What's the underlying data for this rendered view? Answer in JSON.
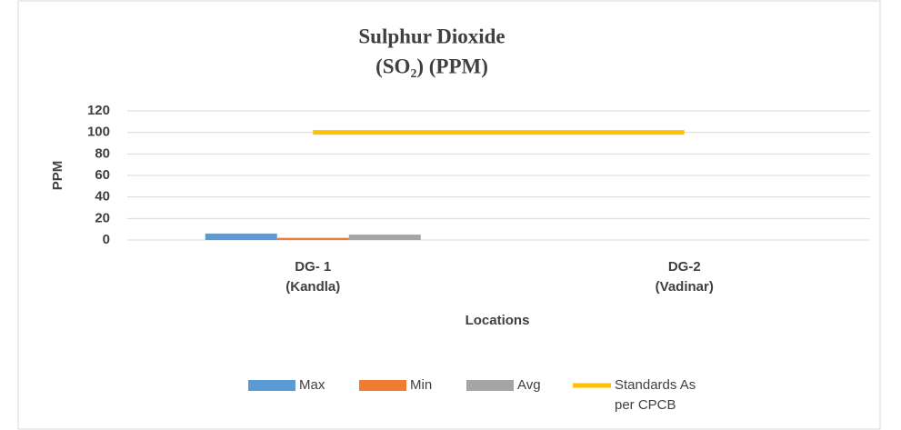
{
  "chart_data": {
    "type": "bar-line",
    "title": [
      "Sulphur Dioxide",
      "(SO₂) (PPM)"
    ],
    "x_label": "Locations",
    "y_label": "PPM",
    "categories": [
      "DG- 1\n(Kandla)",
      "DG-2\n(Vadinar)"
    ],
    "series": [
      {
        "name": "Max",
        "color": "#5b9bd5",
        "type": "bar",
        "values": [
          6,
          null
        ]
      },
      {
        "name": "Min",
        "color": "#ed7d31",
        "type": "bar",
        "values": [
          2,
          null
        ]
      },
      {
        "name": "Avg",
        "color": "#a5a5a5",
        "type": "bar",
        "values": [
          5,
          null
        ]
      },
      {
        "name": "Standards As\nper CPCB",
        "color": "#ffc000",
        "type": "line",
        "values": [
          100,
          100
        ]
      }
    ],
    "ylim": [
      0,
      120
    ],
    "yticks": [
      0,
      20,
      40,
      60,
      80,
      100,
      120
    ],
    "grid": true,
    "legend": "bottom"
  }
}
